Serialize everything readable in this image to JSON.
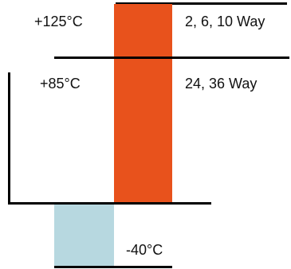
{
  "diagram": {
    "labels": {
      "max_temp": "+125°C",
      "max_temp_ways": "2, 6, 10 Way",
      "mid_temp": "+85°C",
      "mid_temp_ways": "24, 36 Way",
      "min_temp": "-40°C"
    },
    "colors": {
      "hot_bar": "#E8521C",
      "cold_bar": "#B7D8E0",
      "lines": "#000000"
    }
  }
}
